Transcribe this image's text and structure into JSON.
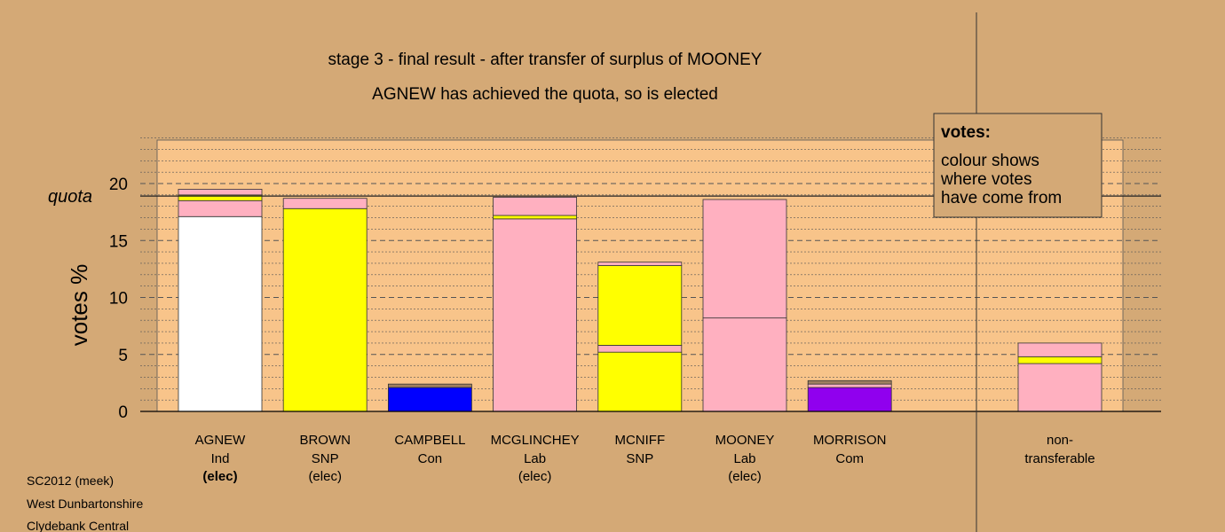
{
  "colors": {
    "background": "#d4a976",
    "plot_bg": "#f8c48a",
    "pink": "#ffb0c0",
    "yellow": "#ffff00",
    "blue": "#0000ff",
    "purple": "#9000ee",
    "brown": "#a08060",
    "white": "#ffffff"
  },
  "chart_data": {
    "type": "bar",
    "stacked": true,
    "title": "stage 3 - final result - after transfer of surplus of MOONEY",
    "subtitle": "AGNEW has achieved the quota, so is elected",
    "ylabel": "votes %",
    "ylim": [
      0,
      24
    ],
    "yticks": [
      0,
      5,
      10,
      15,
      20
    ],
    "quota": 18.9,
    "quota_label": "quota",
    "legend": {
      "title": "votes:",
      "lines": [
        "colour shows",
        "where votes",
        "have come from"
      ]
    },
    "candidates": [
      {
        "name": "AGNEW",
        "party": "Ind",
        "status": "(elec)",
        "status_bold": true,
        "segments": [
          {
            "color": "white",
            "value": 17.1
          },
          {
            "color": "pink",
            "value": 1.4
          },
          {
            "color": "yellow",
            "value": 0.5
          },
          {
            "color": "pink",
            "value": 0.5
          }
        ]
      },
      {
        "name": "BROWN",
        "party": "SNP",
        "status": "(elec)",
        "status_bold": false,
        "segments": [
          {
            "color": "yellow",
            "value": 17.8
          },
          {
            "color": "pink",
            "value": 0.9
          }
        ]
      },
      {
        "name": "CAMPBELL",
        "party": "Con",
        "status": "",
        "status_bold": false,
        "segments": [
          {
            "color": "blue",
            "value": 2.1
          },
          {
            "color": "brown",
            "value": 0.3
          }
        ]
      },
      {
        "name": "MCGLINCHEY",
        "party": "Lab",
        "status": "(elec)",
        "status_bold": false,
        "segments": [
          {
            "color": "pink",
            "value": 16.9
          },
          {
            "color": "yellow",
            "value": 0.3
          },
          {
            "color": "pink",
            "value": 1.6
          }
        ]
      },
      {
        "name": "MCNIFF",
        "party": "SNP",
        "status": "",
        "status_bold": false,
        "segments": [
          {
            "color": "yellow",
            "value": 5.2
          },
          {
            "color": "pink",
            "value": 0.6
          },
          {
            "color": "yellow",
            "value": 7.0
          },
          {
            "color": "pink",
            "value": 0.3
          }
        ]
      },
      {
        "name": "MOONEY",
        "party": "Lab",
        "status": "(elec)",
        "status_bold": false,
        "segments": [
          {
            "color": "pink",
            "value": 8.2
          },
          {
            "color": "pink",
            "value": 10.4
          }
        ]
      },
      {
        "name": "MORRISON",
        "party": "Com",
        "status": "",
        "status_bold": false,
        "segments": [
          {
            "color": "purple",
            "value": 2.1
          },
          {
            "color": "pink",
            "value": 0.3
          },
          {
            "color": "brown",
            "value": 0.3
          }
        ]
      }
    ],
    "nontransferable": {
      "label_line1": "non-",
      "label_line2": "transferable",
      "segments": [
        {
          "color": "pink",
          "value": 4.2
        },
        {
          "color": "yellow",
          "value": 0.6
        },
        {
          "color": "pink",
          "value": 1.2
        }
      ]
    }
  },
  "footer": {
    "line1": "SC2012 (meek)",
    "line2": "West Dunbartonshire",
    "line3": "Clydebank Central"
  }
}
